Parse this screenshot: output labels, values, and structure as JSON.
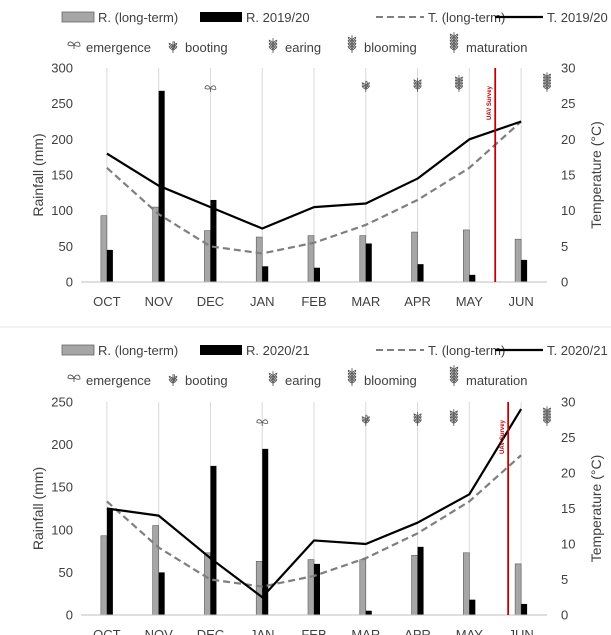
{
  "chart_data": [
    {
      "type": "bar+line",
      "categories": [
        "OCT",
        "NOV",
        "DEC",
        "JAN",
        "FEB",
        "MAR",
        "APR",
        "MAY",
        "JUN"
      ],
      "ylabel": "Rainfall (mm)",
      "y2label": "Temperature (°C)",
      "ylim": [
        0,
        300
      ],
      "yticks": [
        0,
        50,
        100,
        150,
        200,
        250,
        300
      ],
      "y2lim": [
        0,
        30
      ],
      "y2ticks": [
        0,
        5,
        10,
        15,
        20,
        25,
        30
      ],
      "grid": "vertical",
      "legend_position": "top",
      "series": [
        {
          "name": "R. (long-term)",
          "kind": "bar",
          "color": "#a6a6a6",
          "values": [
            93,
            105,
            72,
            63,
            65,
            65,
            70,
            73,
            60
          ]
        },
        {
          "name": "R. 2019/20",
          "kind": "bar",
          "color": "#000000",
          "values": [
            45,
            268,
            115,
            22,
            20,
            54,
            25,
            10,
            31
          ]
        },
        {
          "name": "T. (long-term)",
          "kind": "line",
          "style": "dashed",
          "color": "#7f7f7f",
          "values": [
            16,
            9.5,
            5,
            4,
            5.5,
            8,
            11.5,
            16,
            22.5
          ]
        },
        {
          "name": "T. 2019/20",
          "kind": "line",
          "style": "solid",
          "color": "#000000",
          "values": [
            18,
            13.5,
            10.5,
            7.5,
            10.5,
            11,
            14.5,
            20,
            22.5
          ]
        }
      ],
      "stages": [
        {
          "name": "emergence",
          "position": 2
        },
        {
          "name": "booting",
          "position": 5
        },
        {
          "name": "earing",
          "position": 6
        },
        {
          "name": "blooming",
          "position": 6.8
        },
        {
          "name": "maturation",
          "position": 8.5
        }
      ],
      "stage_legend": [
        "emergence",
        "booting",
        "earing",
        "blooming",
        "maturation"
      ],
      "survey": {
        "label": "UAV Survey",
        "position": 7.5,
        "color": "#c00000"
      }
    },
    {
      "type": "bar+line",
      "categories": [
        "OCT",
        "NOV",
        "DEC",
        "JAN",
        "FEB",
        "MAR",
        "APR",
        "MAY",
        "JUN"
      ],
      "ylabel": "Rainfall (mm)",
      "y2label": "Temperature (°C)",
      "ylim": [
        0,
        250
      ],
      "yticks": [
        0,
        50,
        100,
        150,
        200,
        250
      ],
      "y2lim": [
        0,
        30
      ],
      "y2ticks": [
        0,
        5,
        10,
        15,
        20,
        25,
        30
      ],
      "grid": "vertical",
      "legend_position": "top",
      "series": [
        {
          "name": "R. (long-term)",
          "kind": "bar",
          "color": "#a6a6a6",
          "values": [
            93,
            105,
            73,
            63,
            65,
            65,
            70,
            73,
            60
          ]
        },
        {
          "name": "R. 2020/21",
          "kind": "bar",
          "color": "#000000",
          "values": [
            125,
            50,
            175,
            195,
            60,
            5,
            80,
            18,
            13
          ]
        },
        {
          "name": "T. (long-term)",
          "kind": "line",
          "style": "dashed",
          "color": "#7f7f7f",
          "values": [
            16,
            9.5,
            5,
            4,
            5.5,
            8,
            11.5,
            16,
            22.5
          ]
        },
        {
          "name": "T. 2020/21",
          "kind": "line",
          "style": "solid",
          "color": "#000000",
          "values": [
            15,
            14,
            8,
            2.5,
            10.5,
            10,
            13,
            17,
            29
          ]
        }
      ],
      "stages": [
        {
          "name": "emergence",
          "position": 3
        },
        {
          "name": "booting",
          "position": 5
        },
        {
          "name": "earing",
          "position": 6
        },
        {
          "name": "blooming",
          "position": 6.7
        },
        {
          "name": "maturation",
          "position": 8.5
        }
      ],
      "stage_legend": [
        "emergence",
        "booting",
        "earing",
        "blooming",
        "maturation"
      ],
      "survey": {
        "label": "UAV Survey",
        "position": 7.75,
        "color": "#c00000"
      }
    }
  ]
}
